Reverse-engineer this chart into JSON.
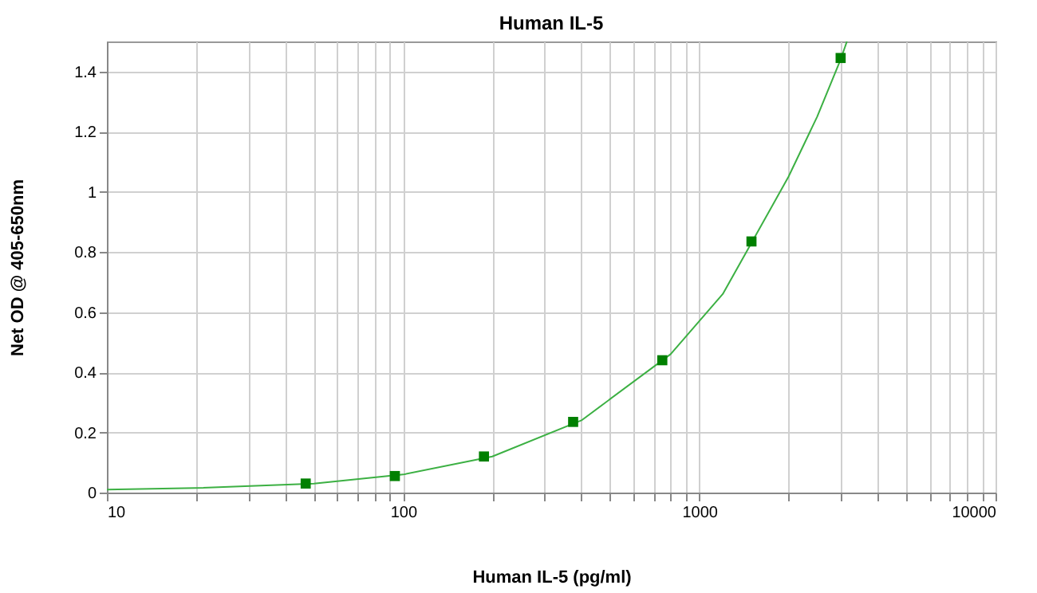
{
  "chart_data": {
    "type": "scatter",
    "title": "Human IL-5",
    "xlabel": "Human IL-5 (pg/ml)",
    "ylabel": "Net OD @ 405-650nm",
    "log": "x",
    "grid": true,
    "marker": "square",
    "xlim": [
      10,
      10000
    ],
    "xticks": [
      10,
      {
        "value": 20,
        "label": null
      },
      {
        "value": 30,
        "label": null
      },
      {
        "value": 40,
        "label": null
      },
      {
        "value": 50,
        "label": null
      },
      {
        "value": 60,
        "label": null
      },
      {
        "value": 70,
        "label": null
      },
      {
        "value": 80,
        "label": null
      },
      {
        "value": 90,
        "label": null
      },
      100,
      {
        "value": 200,
        "label": null
      },
      {
        "value": 300,
        "label": null
      },
      {
        "value": 400,
        "label": null
      },
      {
        "value": 500,
        "label": null
      },
      {
        "value": 600,
        "label": null
      },
      {
        "value": 700,
        "label": null
      },
      {
        "value": 800,
        "label": null
      },
      {
        "value": 900,
        "label": null
      },
      1000,
      {
        "value": 2000,
        "label": null
      },
      {
        "value": 3000,
        "label": null
      },
      {
        "value": 4000,
        "label": null
      },
      {
        "value": 5000,
        "label": null
      },
      {
        "value": 6000,
        "label": null
      },
      {
        "value": 7000,
        "label": null
      },
      {
        "value": 8000,
        "label": null
      },
      {
        "value": 9000,
        "label": null
      },
      10000
    ],
    "ylim": [
      0,
      1.5
    ],
    "yticks": [
      0,
      0.2,
      0.4,
      0.6,
      0.8,
      1,
      1.2,
      1.4
    ],
    "series": [
      {
        "type": "line",
        "color": "#3cb043",
        "line_style": "solid",
        "marker": "none",
        "x": [
          10,
          20,
          50,
          100,
          200,
          400,
          800,
          1200,
          1500,
          2000,
          2500,
          3000,
          3150
        ],
        "values": [
          0.01,
          0.015,
          0.03,
          0.06,
          0.12,
          0.24,
          0.46,
          0.66,
          0.83,
          1.05,
          1.25,
          1.44,
          1.5
        ]
      },
      {
        "type": "scatter",
        "color": "#008000",
        "x": [
          46.9,
          93.8,
          187.5,
          375,
          750,
          1500,
          3000
        ],
        "values": [
          0.03,
          0.055,
          0.12,
          0.235,
          0.44,
          0.835,
          1.445
        ]
      }
    ]
  }
}
